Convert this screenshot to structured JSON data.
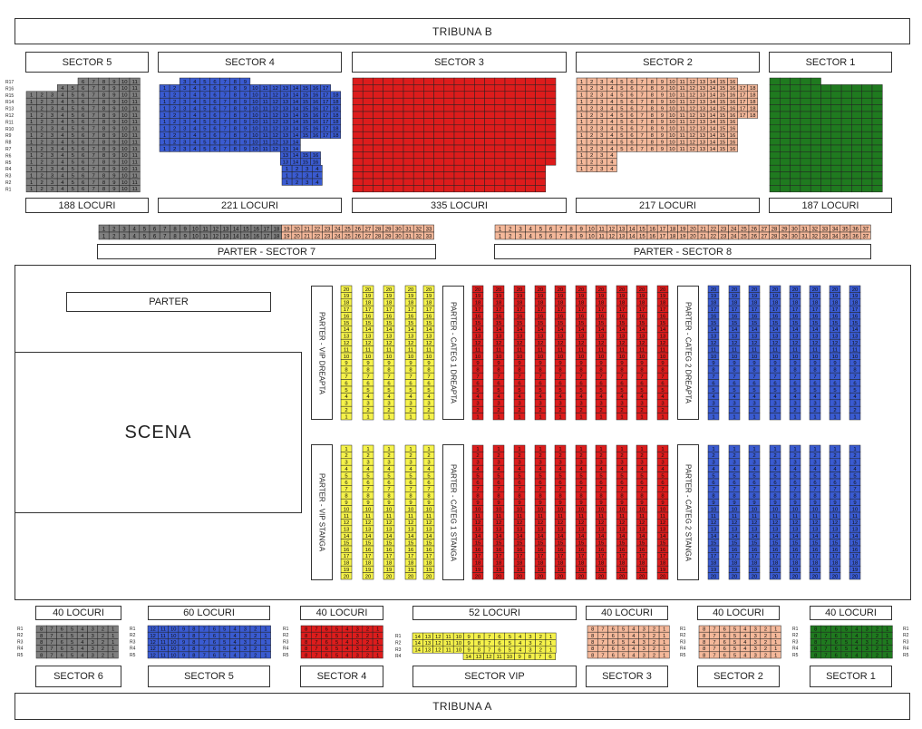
{
  "tribunes": {
    "top": "TRIBUNA B",
    "bottom": "TRIBUNA A"
  },
  "colors": {
    "gray": "#7f7f7f",
    "blue": "#3a5bd1",
    "red": "#dd1c1c",
    "salmon": "#f4b89a",
    "green": "#1f7a1f",
    "yellow": "#f5f24a"
  },
  "upper_sectors": [
    {
      "name": "SECTOR 5",
      "count": "188 LOCURI",
      "color": "gray"
    },
    {
      "name": "SECTOR 4",
      "count": "221 LOCURI",
      "color": "blue"
    },
    {
      "name": "SECTOR 3",
      "count": "335 LOCURI",
      "color": "red"
    },
    {
      "name": "SECTOR 2",
      "count": "217 LOCURI",
      "color": "salmon"
    },
    {
      "name": "SECTOR 1",
      "count": "187 LOCURI",
      "color": "green"
    }
  ],
  "row_labels": [
    "R17",
    "R16",
    "R15",
    "R14",
    "R13",
    "R12",
    "R11",
    "R10",
    "R9",
    "R8",
    "R7",
    "R6",
    "R5",
    "R4",
    "R3",
    "R2",
    "R1"
  ],
  "parter_sectors": {
    "left": "PARTER - SECTOR 7",
    "right": "PARTER - SECTOR 8"
  },
  "floor": {
    "parter": "PARTER",
    "scena": "SCENA",
    "vip_right": "PARTER - VIP DREAPTA",
    "vip_left": "PARTER - VIP STANGA",
    "cat1_right": "PARTER - CATEG 1 DREAPTA",
    "cat1_left": "PARTER - CATEG 1 STANGA",
    "cat2_right": "PARTER - CATEG 2 DREAPTA",
    "cat2_left": "PARTER - CATEG 2 STANGA"
  },
  "lower_sectors": [
    {
      "name": "SECTOR 6",
      "count": "40 LOCURI",
      "color": "gray"
    },
    {
      "name": "SECTOR 5",
      "count": "60 LOCURI",
      "color": "blue"
    },
    {
      "name": "SECTOR 4",
      "count": "40 LOCURI",
      "color": "red"
    },
    {
      "name": "SECTOR VIP",
      "count": "52 LOCURI",
      "color": "yellow"
    },
    {
      "name": "SECTOR 3",
      "count": "40 LOCURI",
      "color": "salmon"
    },
    {
      "name": "SECTOR 2",
      "count": "40 LOCURI",
      "color": "salmon"
    },
    {
      "name": "SECTOR 1",
      "count": "40 LOCURI",
      "color": "green"
    }
  ],
  "lower_rows": [
    "R1",
    "R2",
    "R3",
    "R4",
    "R5"
  ]
}
